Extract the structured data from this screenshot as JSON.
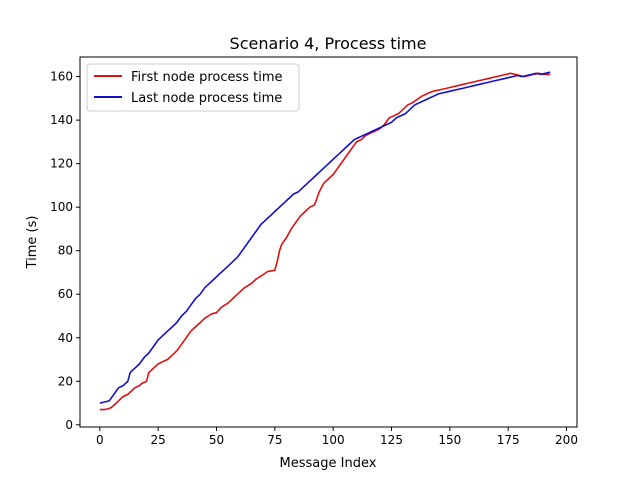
{
  "chart_data": {
    "type": "line",
    "title": "Scenario 4, Process time",
    "xlabel": "Message Index",
    "ylabel": "Time (s)",
    "xlim": [
      -8.5,
      204.5
    ],
    "ylim": [
      -1,
      169
    ],
    "xticks": [
      0,
      25,
      50,
      75,
      100,
      125,
      150,
      175,
      200
    ],
    "xtick_labels": [
      "0",
      "25",
      "50",
      "75",
      "100",
      "125",
      "150",
      "175",
      "200"
    ],
    "yticks": [
      0,
      20,
      40,
      60,
      80,
      100,
      120,
      140,
      160
    ],
    "ytick_labels": [
      "0",
      "20",
      "40",
      "60",
      "80",
      "100",
      "120",
      "140",
      "160"
    ],
    "grid": false,
    "legend_position": "top-left",
    "series": [
      {
        "name": "First node process time",
        "color": "#dd1111",
        "x": [
          0,
          2,
          4,
          5,
          7,
          9,
          10,
          12,
          13,
          15,
          17,
          18,
          20,
          21,
          23,
          25,
          27,
          29,
          31,
          33,
          35,
          37,
          39,
          41,
          43,
          45,
          48,
          50,
          52,
          55,
          57,
          60,
          62,
          65,
          67,
          70,
          72,
          75,
          76,
          77,
          78,
          80,
          82,
          84,
          86,
          88,
          90,
          92,
          94,
          96,
          98,
          100,
          102,
          104,
          106,
          108,
          110,
          112,
          114,
          116,
          118,
          120,
          122,
          124,
          126,
          128,
          130,
          132,
          134,
          136,
          138,
          140,
          142,
          144,
          146,
          148,
          150,
          152,
          154,
          156,
          158,
          160,
          162,
          164,
          166,
          168,
          170,
          172,
          174,
          176,
          178,
          180,
          182,
          184,
          186,
          188,
          190,
          193
        ],
        "y": [
          7,
          7,
          7.5,
          8,
          10,
          12,
          13,
          14,
          15,
          17,
          18,
          19,
          20,
          24,
          26,
          28,
          29,
          30,
          32,
          34,
          37,
          40,
          43,
          45,
          47,
          49,
          51,
          51.5,
          54,
          56,
          58,
          61,
          63,
          65,
          67,
          69,
          70.5,
          71,
          75,
          80,
          83,
          86,
          90,
          93,
          96,
          98,
          100,
          101,
          107,
          111,
          113,
          115,
          118,
          121,
          124,
          127,
          130,
          131,
          133,
          134,
          135,
          136,
          138,
          141,
          142,
          143,
          145,
          147,
          148,
          149.5,
          151,
          152,
          153,
          153.5,
          154,
          154.5,
          155,
          155.5,
          156,
          156.5,
          157,
          157.5,
          158,
          158.5,
          159,
          159.5,
          160,
          160.5,
          161,
          161.5,
          161,
          160.5,
          160,
          160.5,
          161,
          161.5,
          161,
          161
        ],
        "note": ""
      },
      {
        "name": "Last node process time",
        "color": "#1111cc",
        "x": [
          0,
          2,
          4,
          6,
          8,
          10,
          12,
          13,
          15,
          17,
          19,
          21,
          23,
          25,
          27,
          29,
          31,
          33,
          35,
          37,
          39,
          41,
          43,
          45,
          47,
          49,
          51,
          53,
          55,
          57,
          59,
          61,
          63,
          65,
          67,
          69,
          71,
          73,
          75,
          77,
          79,
          81,
          83,
          85,
          87,
          89,
          91,
          93,
          95,
          97,
          99,
          101,
          103,
          105,
          107,
          109,
          111,
          113,
          115,
          117,
          119,
          121,
          123,
          125,
          127,
          129,
          131,
          133,
          135,
          137,
          139,
          141,
          143,
          145,
          147,
          149,
          151,
          153,
          155,
          157,
          159,
          161,
          163,
          165,
          167,
          169,
          171,
          173,
          175,
          177,
          179,
          181,
          183,
          185,
          187,
          189,
          191,
          193
        ],
        "y": [
          10,
          10.5,
          11,
          14,
          17,
          18,
          20,
          24,
          26,
          28,
          31,
          33,
          36,
          39,
          41,
          43,
          45,
          47,
          50,
          52,
          55,
          58,
          60,
          63,
          65,
          67,
          69,
          71,
          73,
          75,
          77,
          80,
          83,
          86,
          89,
          92,
          94,
          96,
          98,
          100,
          102,
          104,
          106,
          107,
          109,
          111,
          113,
          115,
          117,
          119,
          121,
          123,
          125,
          127,
          129,
          131,
          132,
          133,
          134,
          135,
          136,
          137,
          138,
          139,
          141,
          142,
          143,
          145,
          147,
          148,
          149,
          150,
          151,
          152,
          152.5,
          153,
          153.5,
          154,
          154.5,
          155,
          155.5,
          156,
          156.5,
          157,
          157.5,
          158,
          158.5,
          159,
          159.5,
          160,
          160.5,
          160,
          160.5,
          161,
          161.5,
          161,
          161.5,
          162
        ],
        "note": ""
      }
    ]
  }
}
